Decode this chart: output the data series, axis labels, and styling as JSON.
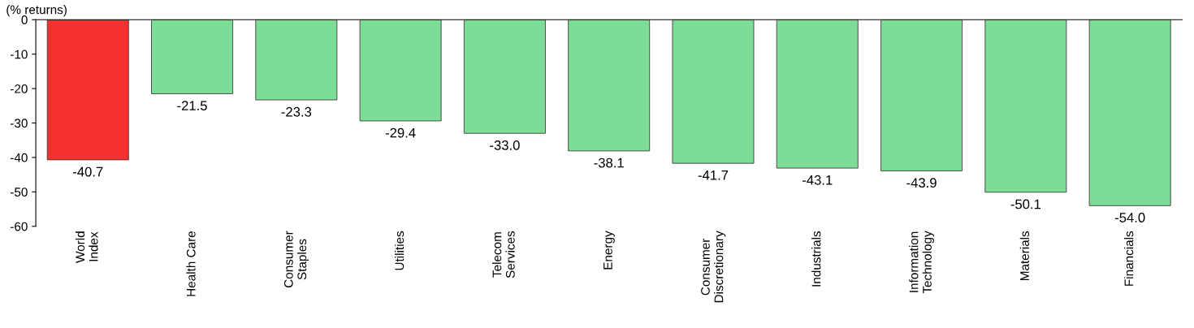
{
  "chart_data": {
    "type": "bar",
    "ylabel": "(% returns)",
    "categories": [
      "World\nIndex",
      "Health Care",
      "Consumer\nStaples",
      "Utilities",
      "Telecom\nServices",
      "Energy",
      "Consumer\nDiscretionary",
      "Industrials",
      "Information\nTechnology",
      "Materials",
      "Financials"
    ],
    "values": [
      -40.7,
      -21.5,
      -23.3,
      -29.4,
      -33.0,
      -38.1,
      -41.7,
      -43.1,
      -43.9,
      -50.1,
      -54.0
    ],
    "colors": [
      "#f5302e",
      "#7ddc96",
      "#7ddc96",
      "#7ddc96",
      "#7ddc96",
      "#7ddc96",
      "#7ddc96",
      "#7ddc96",
      "#7ddc96",
      "#7ddc96",
      "#7ddc96"
    ],
    "value_labels": [
      "-40.7",
      "-21.5",
      "-23.3",
      "-29.4",
      "-33.0",
      "-38.1",
      "-41.7",
      "-43.1",
      "-43.9",
      "-50.1",
      "-54.0"
    ],
    "ylim": [
      -60,
      0
    ],
    "yticks": [
      0,
      -10,
      -20,
      -30,
      -40,
      -50,
      -60
    ],
    "grid": false,
    "legend": false
  }
}
